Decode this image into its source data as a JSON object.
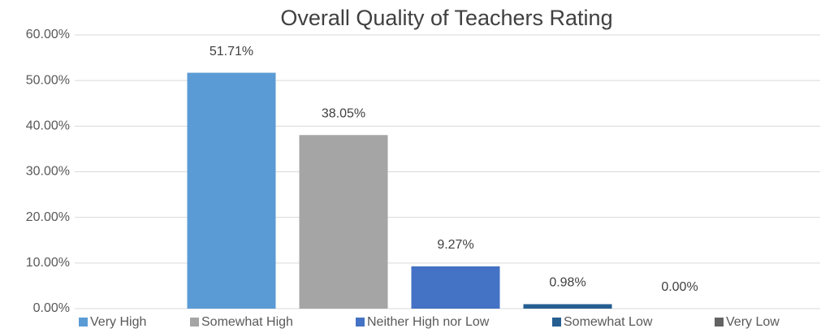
{
  "chart_data": {
    "type": "bar",
    "title": "Overall Quality of Teachers Rating",
    "series": [
      {
        "name": "Very High",
        "color": "#5b9bd5",
        "values": [
          51.71
        ],
        "value_labels": [
          "51.71%"
        ]
      },
      {
        "name": "Somewhat High",
        "color": "#a5a5a5",
        "values": [
          38.05
        ],
        "value_labels": [
          "38.05%"
        ]
      },
      {
        "name": "Neither High nor Low",
        "color": "#4472c4",
        "values": [
          9.27
        ],
        "value_labels": [
          "9.27%"
        ]
      },
      {
        "name": "Somewhat Low",
        "color": "#255e91",
        "values": [
          0.98
        ],
        "value_labels": [
          "0.98%"
        ]
      },
      {
        "name": "Very Low",
        "color": "#636363",
        "values": [
          0
        ],
        "value_labels": [
          "0.00%"
        ]
      }
    ],
    "ylim": [
      0,
      60
    ],
    "yticks": [
      {
        "value": 0,
        "label": "0.00%"
      },
      {
        "value": 10,
        "label": "10.00%"
      },
      {
        "value": 20,
        "label": "20.00%"
      },
      {
        "value": 30,
        "label": "30.00%"
      },
      {
        "value": 40,
        "label": "40.00%"
      },
      {
        "value": 50,
        "label": "50.00%"
      },
      {
        "value": 60,
        "label": "60.00%"
      }
    ],
    "grid": true,
    "legend": "bottom"
  }
}
